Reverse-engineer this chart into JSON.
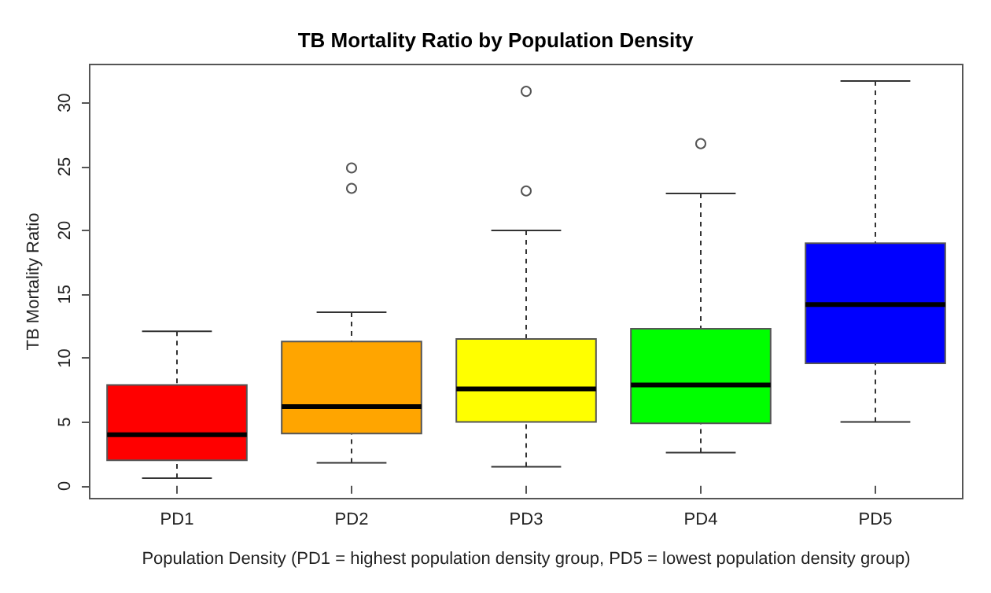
{
  "chart_data": {
    "type": "box",
    "title": "TB Mortality Ratio by Population Density",
    "xlabel": "Population Density (PD1 = highest population density group, PD5 = lowest population density group)",
    "ylabel": "TB Mortality Ratio",
    "categories": [
      "PD1",
      "PD2",
      "PD3",
      "PD4",
      "PD5"
    ],
    "colors": [
      "#ff0000",
      "#ffa500",
      "#ffff00",
      "#00ff00",
      "#0000ff"
    ],
    "boxes": [
      {
        "low": 0.6,
        "q1": 2,
        "median": 4,
        "q3": 7.9,
        "high": 12.1
      },
      {
        "low": 1.8,
        "q1": 4.1,
        "median": 6.2,
        "q3": 11.3,
        "high": 13.6,
        "outliers": [
          23.3,
          24.9
        ]
      },
      {
        "low": 1.5,
        "q1": 5,
        "median": 7.6,
        "q3": 11.5,
        "high": 20,
        "outliers": [
          23.1,
          30.9
        ]
      },
      {
        "low": 2.6,
        "q1": 4.9,
        "median": 7.9,
        "q3": 12.3,
        "high": 22.9,
        "outliers": [
          26.8
        ]
      },
      {
        "low": 5,
        "q1": 9.6,
        "median": 14.2,
        "q3": 19,
        "high": 31.7
      }
    ],
    "ylim": [
      -1,
      33
    ],
    "yticks": [
      0,
      5,
      10,
      15,
      20,
      25,
      30
    ],
    "grid": false
  }
}
